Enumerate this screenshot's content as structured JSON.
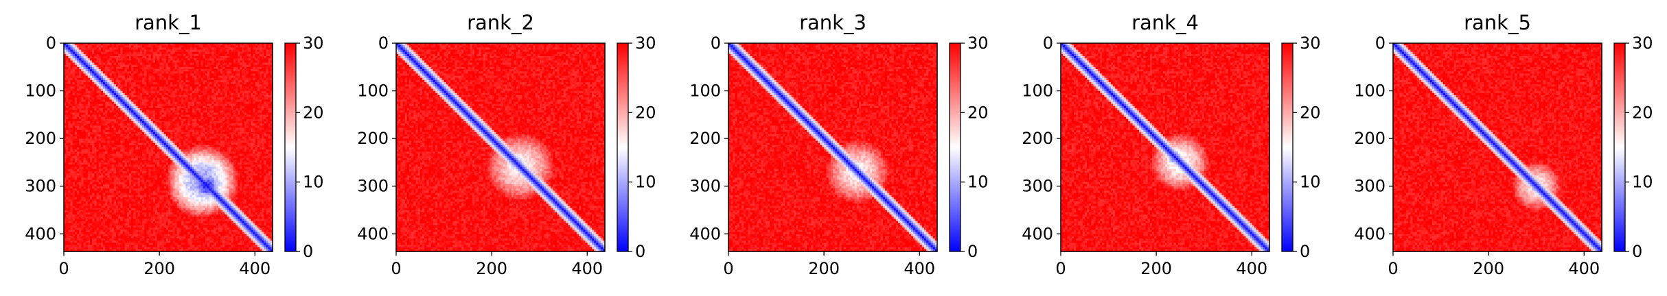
{
  "chart_data": [
    {
      "type": "heatmap",
      "title": "rank_1",
      "x_ticks": [
        0,
        200,
        400
      ],
      "y_ticks": [
        0,
        100,
        200,
        300,
        400
      ],
      "xlim": [
        0,
        437
      ],
      "ylim": [
        437,
        0
      ],
      "matrix_size": 437,
      "colorbar": {
        "ticks": [
          0,
          10,
          20,
          30
        ],
        "range": [
          0,
          30
        ],
        "colors": [
          "#0000ff",
          "#ffffff",
          "#ff0000"
        ]
      },
      "blobs": [
        {
          "center": [
            290,
            290
          ],
          "radius": 75,
          "value": 9
        },
        {
          "center": [
            300,
            300
          ],
          "radius": 35,
          "value": 3
        }
      ]
    },
    {
      "type": "heatmap",
      "title": "rank_2",
      "x_ticks": [
        0,
        200,
        400
      ],
      "y_ticks": [
        0,
        100,
        200,
        300,
        400
      ],
      "xlim": [
        0,
        437
      ],
      "ylim": [
        437,
        0
      ],
      "matrix_size": 437,
      "colorbar": {
        "ticks": [
          0,
          10,
          20,
          30
        ],
        "range": [
          0,
          30
        ],
        "colors": [
          "#0000ff",
          "#ffffff",
          "#ff0000"
        ]
      },
      "blobs": [
        {
          "center": [
            260,
            260
          ],
          "radius": 70,
          "value": 16
        },
        {
          "center": [
            250,
            250
          ],
          "radius": 25,
          "value": 9
        }
      ]
    },
    {
      "type": "heatmap",
      "title": "rank_3",
      "x_ticks": [
        0,
        200,
        400
      ],
      "y_ticks": [
        0,
        100,
        200,
        300,
        400
      ],
      "xlim": [
        0,
        437
      ],
      "ylim": [
        437,
        0
      ],
      "matrix_size": 437,
      "colorbar": {
        "ticks": [
          0,
          10,
          20,
          30
        ],
        "range": [
          0,
          30
        ],
        "colors": [
          "#0000ff",
          "#ffffff",
          "#ff0000"
        ]
      },
      "blobs": [
        {
          "center": [
            270,
            270
          ],
          "radius": 65,
          "value": 16
        },
        {
          "center": [
            260,
            260
          ],
          "radius": 22,
          "value": 9
        }
      ]
    },
    {
      "type": "heatmap",
      "title": "rank_4",
      "x_ticks": [
        0,
        200,
        400
      ],
      "y_ticks": [
        0,
        100,
        200,
        300,
        400
      ],
      "xlim": [
        0,
        437
      ],
      "ylim": [
        437,
        0
      ],
      "matrix_size": 437,
      "colorbar": {
        "ticks": [
          0,
          10,
          20,
          30
        ],
        "range": [
          0,
          30
        ],
        "colors": [
          "#0000ff",
          "#ffffff",
          "#ff0000"
        ]
      },
      "blobs": [
        {
          "center": [
            250,
            250
          ],
          "radius": 60,
          "value": 15
        },
        {
          "center": [
            240,
            240
          ],
          "radius": 25,
          "value": 8
        }
      ]
    },
    {
      "type": "heatmap",
      "title": "rank_5",
      "x_ticks": [
        0,
        200,
        400
      ],
      "y_ticks": [
        0,
        100,
        200,
        300,
        400
      ],
      "xlim": [
        0,
        437
      ],
      "ylim": [
        437,
        0
      ],
      "matrix_size": 437,
      "colorbar": {
        "ticks": [
          0,
          10,
          20,
          30
        ],
        "range": [
          0,
          30
        ],
        "colors": [
          "#0000ff",
          "#ffffff",
          "#ff0000"
        ]
      },
      "blobs": [
        {
          "center": [
            300,
            300
          ],
          "radius": 50,
          "value": 16
        },
        {
          "center": [
            300,
            300
          ],
          "radius": 18,
          "value": 6
        }
      ]
    }
  ]
}
